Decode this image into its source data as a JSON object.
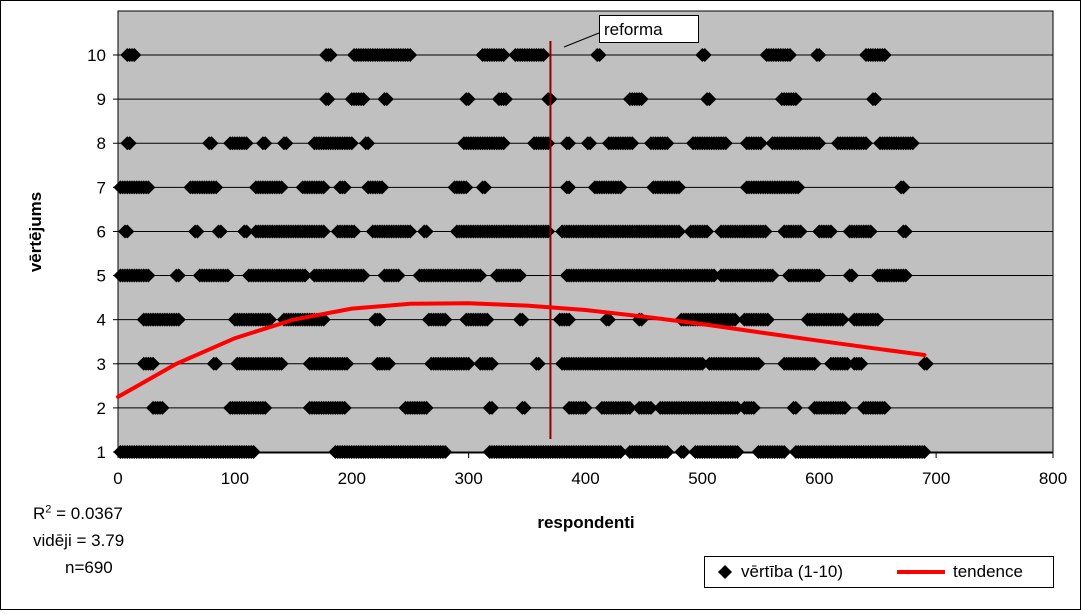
{
  "chart_data": {
    "type": "scatter",
    "xlabel": "respondenti",
    "ylabel": "vērtējums",
    "xlim": [
      0,
      800
    ],
    "ylim": [
      1,
      10
    ],
    "x_ticks": [
      "0",
      "100",
      "200",
      "300",
      "400",
      "500",
      "600",
      "700",
      "800"
    ],
    "y_ticks": [
      "1",
      "2",
      "3",
      "4",
      "5",
      "6",
      "7",
      "8",
      "9",
      "10"
    ],
    "grid": "horizontal",
    "background": "#c0c0c0",
    "legend": {
      "placement": "bottom-right",
      "entries": [
        {
          "label": "vērtība (1-10)",
          "marker": "diamond-icon",
          "color": "#000000"
        },
        {
          "label": "tendence",
          "marker": "line",
          "color": "#ff0000"
        }
      ]
    },
    "annotation": {
      "label": "reforma",
      "x": 370
    },
    "stats": {
      "r2_label": "R",
      "r2_value": "= 0.0367",
      "mean": "vidēji = 3.79",
      "n": "n=690"
    },
    "series": [
      {
        "name": "vērtība (1-10)",
        "kind": "points",
        "points_by_value": {
          "10": [
            [
              8,
              14
            ],
            [
              178,
              182
            ],
            [
              202,
              250
            ],
            [
              312,
              330
            ],
            [
              340,
              365
            ],
            [
              410,
              412
            ],
            [
              500,
              502
            ],
            [
              555,
              575
            ],
            [
              598,
              600
            ],
            [
              640,
              656
            ]
          ],
          "9": [
            [
              178,
              180
            ],
            [
              200,
              210
            ],
            [
              228,
              230
            ],
            [
              298,
              300
            ],
            [
              326,
              332
            ],
            [
              368,
              370
            ],
            [
              438,
              448
            ],
            [
              504,
              506
            ],
            [
              568,
              580
            ],
            [
              646,
              648
            ]
          ],
          "8": [
            [
              8,
              10
            ],
            [
              78,
              80
            ],
            [
              96,
              110
            ],
            [
              124,
              126
            ],
            [
              142,
              144
            ],
            [
              168,
              200
            ],
            [
              212,
              214
            ],
            [
              296,
              330
            ],
            [
              356,
              368
            ],
            [
              384,
              386
            ],
            [
              402,
              404
            ],
            [
              420,
              440
            ],
            [
              456,
              470
            ],
            [
              492,
              520
            ],
            [
              538,
              550
            ],
            [
              560,
              600
            ],
            [
              616,
              640
            ],
            [
              652,
              680
            ]
          ],
          "7": [
            [
              2,
              26
            ],
            [
              62,
              84
            ],
            [
              118,
              140
            ],
            [
              158,
              176
            ],
            [
              190,
              194
            ],
            [
              214,
              226
            ],
            [
              288,
              298
            ],
            [
              312,
              314
            ],
            [
              384,
              386
            ],
            [
              408,
              430
            ],
            [
              458,
              480
            ],
            [
              538,
              582
            ],
            [
              670,
              672
            ]
          ],
          "6": [
            [
              6,
              8
            ],
            [
              66,
              68
            ],
            [
              86,
              88
            ],
            [
              108,
              110
            ],
            [
              118,
              176
            ],
            [
              188,
              202
            ],
            [
              218,
              250
            ],
            [
              262,
              264
            ],
            [
              290,
              368
            ],
            [
              380,
              480
            ],
            [
              490,
              504
            ],
            [
              516,
              554
            ],
            [
              570,
              584
            ],
            [
              600,
              610
            ],
            [
              626,
              644
            ],
            [
              672,
              674
            ]
          ],
          "5": [
            [
              2,
              26
            ],
            [
              50,
              52
            ],
            [
              70,
              94
            ],
            [
              112,
              160
            ],
            [
              168,
              210
            ],
            [
              228,
              240
            ],
            [
              258,
              310
            ],
            [
              324,
              344
            ],
            [
              384,
              510
            ],
            [
              516,
              560
            ],
            [
              574,
              600
            ],
            [
              626,
              628
            ],
            [
              650,
              674
            ]
          ],
          "4": [
            [
              22,
              52
            ],
            [
              100,
              130
            ],
            [
              142,
              176
            ],
            [
              220,
              224
            ],
            [
              266,
              280
            ],
            [
              298,
              316
            ],
            [
              344,
              346
            ],
            [
              378,
              386
            ],
            [
              418,
              420
            ],
            [
              446,
              448
            ],
            [
              482,
              528
            ],
            [
              536,
              556
            ],
            [
              590,
              620
            ],
            [
              630,
              650
            ]
          ],
          "3": [
            [
              22,
              30
            ],
            [
              82,
              84
            ],
            [
              102,
              140
            ],
            [
              164,
              196
            ],
            [
              222,
              232
            ],
            [
              268,
              300
            ],
            [
              310,
              320
            ],
            [
              358,
              360
            ],
            [
              380,
              500
            ],
            [
              506,
              548
            ],
            [
              570,
              596
            ],
            [
              610,
              624
            ],
            [
              630,
              636
            ],
            [
              690,
              692
            ]
          ],
          "2": [
            [
              30,
              38
            ],
            [
              96,
              126
            ],
            [
              164,
              194
            ],
            [
              246,
              264
            ],
            [
              318,
              320
            ],
            [
              346,
              348
            ],
            [
              386,
              400
            ],
            [
              414,
              438
            ],
            [
              446,
              456
            ],
            [
              464,
              530
            ],
            [
              536,
              544
            ],
            [
              578,
              580
            ],
            [
              596,
              622
            ],
            [
              638,
              656
            ]
          ],
          "1": [
            [
              2,
              116
            ],
            [
              186,
              280
            ],
            [
              318,
              430
            ],
            [
              438,
              470
            ],
            [
              482,
              484
            ],
            [
              494,
              530
            ],
            [
              548,
              570
            ],
            [
              580,
              690
            ]
          ]
        }
      },
      {
        "name": "tendence",
        "kind": "trend",
        "color": "#ff0000",
        "x": [
          0,
          50,
          100,
          150,
          200,
          250,
          300,
          350,
          400,
          450,
          500,
          550,
          600,
          650,
          690
        ],
        "y": [
          2.25,
          3.0,
          3.58,
          4.0,
          4.25,
          4.36,
          4.37,
          4.32,
          4.22,
          4.07,
          3.9,
          3.71,
          3.52,
          3.34,
          3.2
        ]
      }
    ]
  }
}
